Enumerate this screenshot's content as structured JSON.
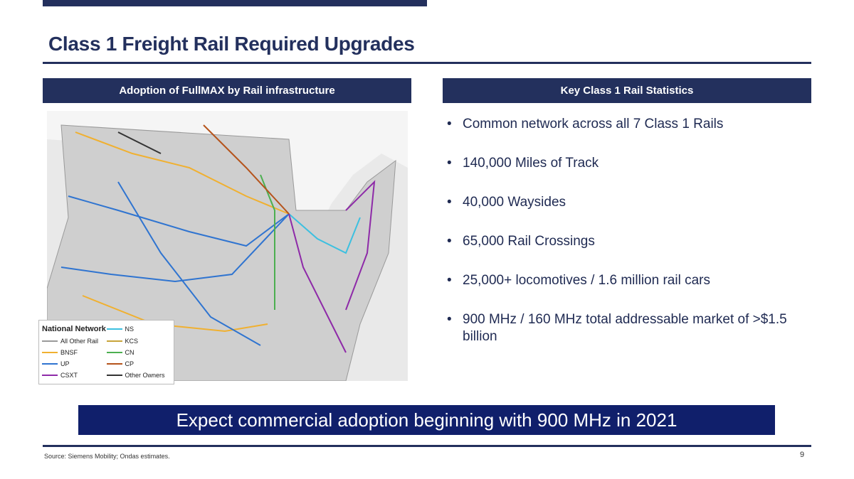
{
  "title": "Class 1 Freight Rail Required Upgrades",
  "left_header": "Adoption of FullMAX by Rail infrastructure",
  "right_header": "Key Class 1 Rail Statistics",
  "legend": {
    "title": "National Network",
    "items": [
      {
        "label": "NS",
        "color": "#3cc0e0"
      },
      {
        "label": "All Other Rail",
        "color": "#9a9a9a"
      },
      {
        "label": "KCS",
        "color": "#c8a43a"
      },
      {
        "label": "BNSF",
        "color": "#f0b030"
      },
      {
        "label": "CN",
        "color": "#4caf50"
      },
      {
        "label": "UP",
        "color": "#2f74d0"
      },
      {
        "label": "CP",
        "color": "#b5531b"
      },
      {
        "label": "CSXT",
        "color": "#8e2aa8"
      },
      {
        "label": "Other Owners",
        "color": "#333333"
      }
    ]
  },
  "stats": [
    "Common network across all 7 Class 1 Rails",
    "140,000 Miles of Track",
    "40,000 Waysides",
    "65,000 Rail Crossings",
    "25,000+ locomotives / 1.6 million rail cars",
    "900 MHz / 160 MHz total addressable market of >$1.5 billion"
  ],
  "banner": "Expect commercial adoption beginning with 900 MHz in 2021",
  "source": "Source: Siemens Mobility; Ondas estimates.",
  "page_number": "9"
}
